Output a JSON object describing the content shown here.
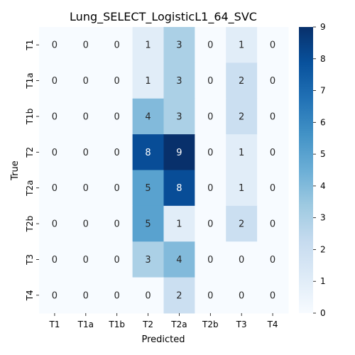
{
  "chart_data": {
    "type": "heatmap",
    "title": "Lung_SELECT_LogisticL1_64_SVC",
    "xlabel": "Predicted",
    "ylabel": "True",
    "x_categories": [
      "T1",
      "T1a",
      "T1b",
      "T2",
      "T2a",
      "T2b",
      "T3",
      "T4"
    ],
    "y_categories": [
      "T1",
      "T1a",
      "T1b",
      "T2",
      "T2a",
      "T2b",
      "T3",
      "T4"
    ],
    "values": [
      [
        0,
        0,
        0,
        1,
        3,
        0,
        1,
        0
      ],
      [
        0,
        0,
        0,
        1,
        3,
        0,
        2,
        0
      ],
      [
        0,
        0,
        0,
        4,
        3,
        0,
        2,
        0
      ],
      [
        0,
        0,
        0,
        8,
        9,
        0,
        1,
        0
      ],
      [
        0,
        0,
        0,
        5,
        8,
        0,
        1,
        0
      ],
      [
        0,
        0,
        0,
        5,
        1,
        0,
        2,
        0
      ],
      [
        0,
        0,
        0,
        3,
        4,
        0,
        0,
        0
      ],
      [
        0,
        0,
        0,
        0,
        2,
        0,
        0,
        0
      ]
    ],
    "colorbar": {
      "min": 0,
      "max": 9,
      "ticks": [
        "0",
        "1",
        "2",
        "3",
        "4",
        "5",
        "6",
        "7",
        "8",
        "9"
      ],
      "colormap": "Blues",
      "low_color": "#f7fbff",
      "high_color": "#08306b"
    },
    "annotations": true,
    "grid": false
  }
}
